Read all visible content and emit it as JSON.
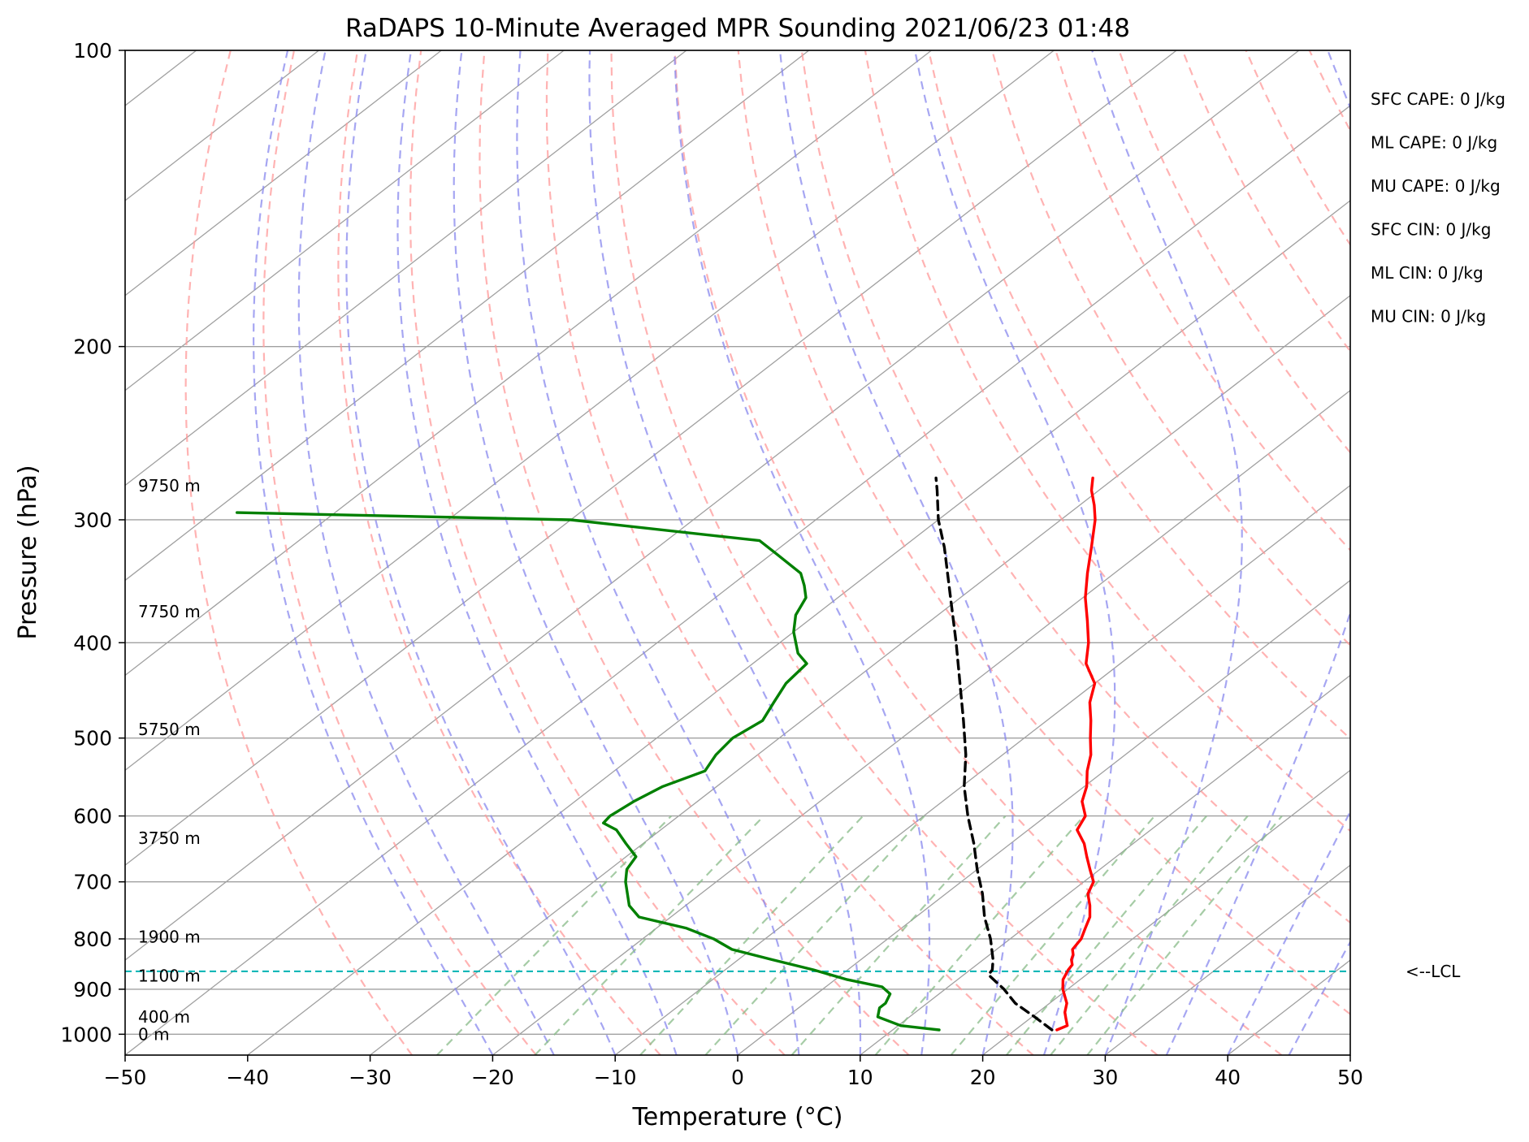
{
  "chart_data": {
    "type": "line",
    "title": "RaDAPS 10-Minute Averaged MPR Sounding 2021/06/23 01:48",
    "xlabel": "Temperature (°C)",
    "ylabel": "Pressure (hPa)",
    "xlim": [
      -50,
      50
    ],
    "ylim": [
      1050,
      100
    ],
    "y_scale": "log",
    "skew": true,
    "grid": true,
    "x_ticks": [
      -50,
      -40,
      -30,
      -20,
      -10,
      0,
      10,
      20,
      30,
      40,
      50
    ],
    "y_ticks": [
      100,
      200,
      300,
      400,
      500,
      600,
      700,
      800,
      900,
      1000
    ],
    "series": [
      {
        "color": "#ff0000",
        "p": [
          990,
          980,
          965,
          950,
          930,
          900,
          880,
          860,
          850,
          840,
          830,
          820,
          800,
          780,
          760,
          740,
          720,
          700,
          680,
          660,
          640,
          620,
          600,
          580,
          560,
          540,
          520,
          500,
          480,
          460,
          440,
          420,
          400,
          380,
          360,
          340,
          320,
          300,
          290,
          280,
          272
        ],
        "t": [
          23.4,
          23.8,
          23.0,
          22.2,
          21.4,
          19.6,
          18.6,
          18.0,
          17.8,
          17.2,
          16.8,
          16.2,
          15.8,
          15.0,
          14.2,
          13.0,
          11.6,
          10.8,
          9.2,
          7.6,
          6.0,
          4.0,
          3.2,
          1.4,
          0.2,
          -1.4,
          -2.8,
          -4.6,
          -6.4,
          -8.4,
          -10.0,
          -12.8,
          -14.8,
          -17.2,
          -19.8,
          -22.2,
          -24.6,
          -27.2,
          -28.8,
          -30.6,
          -31.8
        ]
      },
      {
        "color": "#008000",
        "p": [
          990,
          980,
          960,
          940,
          930,
          910,
          895,
          880,
          860,
          840,
          820,
          800,
          780,
          760,
          740,
          700,
          680,
          660,
          640,
          620,
          610,
          600,
          580,
          560,
          540,
          520,
          500,
          480,
          460,
          440,
          420,
          410,
          390,
          375,
          360,
          350,
          340,
          325,
          315,
          300,
          295
        ],
        "t": [
          13.8,
          10.2,
          7.4,
          6.6,
          6.6,
          6.0,
          4.6,
          1.0,
          -2.8,
          -7.2,
          -11.6,
          -14.2,
          -17.6,
          -22.6,
          -24.6,
          -27.4,
          -28.6,
          -29.2,
          -31.4,
          -33.6,
          -35.4,
          -35.6,
          -35.2,
          -34.4,
          -32.6,
          -33.4,
          -33.8,
          -33.2,
          -34.2,
          -35.2,
          -35.6,
          -37.4,
          -40.0,
          -41.6,
          -42.6,
          -44.0,
          -45.6,
          -49.6,
          -52.4,
          -70.0,
          -98.0
        ]
      },
      {
        "color": "#000000",
        "p": [
          990,
          960,
          930,
          900,
          870,
          860,
          840,
          800,
          760,
          720,
          680,
          640,
          600,
          560,
          520,
          480,
          440,
          400,
          360,
          320,
          300,
          280,
          272
        ],
        "t": [
          23.0,
          20.2,
          17.2,
          14.8,
          12.0,
          11.8,
          10.8,
          8.4,
          5.6,
          3.0,
          0.0,
          -3.0,
          -6.4,
          -9.8,
          -13.0,
          -16.8,
          -21.0,
          -25.6,
          -30.8,
          -36.6,
          -40.0,
          -43.2,
          -44.6
        ]
      }
    ],
    "lcl_pressure": 863,
    "lcl_label": "<--LCL",
    "height_labels": [
      {
        "text": "9750 m",
        "p": 277
      },
      {
        "text": "7750 m",
        "p": 372
      },
      {
        "text": "5750 m",
        "p": 490
      },
      {
        "text": "3750 m",
        "p": 632
      },
      {
        "text": "1900 m",
        "p": 796
      },
      {
        "text": "1100 m",
        "p": 872
      },
      {
        "text": "400 m",
        "p": 960
      },
      {
        "text": "0 m",
        "p": 1000
      }
    ],
    "indices": [
      "SFC CAPE: 0 J/kg",
      "ML CAPE: 0 J/kg",
      "MU CAPE: 0 J/kg",
      "SFC CIN: 0 J/kg",
      "ML CIN: 0 J/kg",
      "MU CIN: 0 J/kg"
    ],
    "colors": {
      "isotherm": "#a0a0a0",
      "isobar": "#a0a0a0",
      "dry_adiabat": "#ff9999",
      "moist_adiabat": "#8888ee",
      "mixing_ratio": "#88bb88",
      "lcl_line": "#00b3b3"
    }
  }
}
